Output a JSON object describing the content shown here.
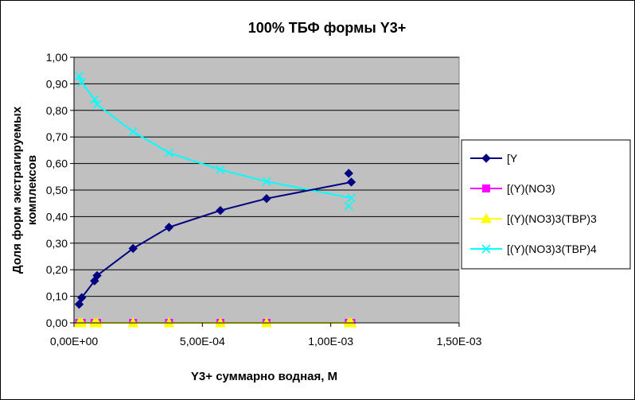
{
  "chart_data": {
    "type": "scatter",
    "title": "100%  ТБФ  формы Y3+",
    "xlabel": "Y3+ суммарно  водная, М",
    "ylabel_line1": "Доля форм экстрагируемых",
    "ylabel_line2": "комплексов",
    "xlim": [
      0,
      0.0015
    ],
    "ylim": [
      0,
      1.0
    ],
    "x_ticks": [
      0,
      0.0005,
      0.001,
      0.0015
    ],
    "x_tick_labels": [
      "0,00E+00",
      "5,00E-04",
      "1,00E-03",
      "1,50E-03"
    ],
    "y_ticks": [
      0,
      0.1,
      0.2,
      0.3,
      0.4,
      0.5,
      0.6,
      0.7,
      0.8,
      0.9,
      1.0
    ],
    "y_tick_labels": [
      "0,00",
      "0,10",
      "0,20",
      "0,30",
      "0,40",
      "0,50",
      "0,60",
      "0,70",
      "0,80",
      "0,90",
      "1,00"
    ],
    "grid": "horizontal",
    "plot_background": "#c0c0c0",
    "legend_position": "right",
    "series": [
      {
        "name": "[Y",
        "color": "#000080",
        "marker": "diamond",
        "line_points": [
          {
            "x": 2e-05,
            "y": 0.07
          },
          {
            "x": 3e-05,
            "y": 0.095
          },
          {
            "x": 8e-05,
            "y": 0.158
          },
          {
            "x": 9e-05,
            "y": 0.178
          },
          {
            "x": 0.00023,
            "y": 0.28
          },
          {
            "x": 0.00037,
            "y": 0.36
          },
          {
            "x": 0.00057,
            "y": 0.423
          },
          {
            "x": 0.00075,
            "y": 0.468
          },
          {
            "x": 0.00108,
            "y": 0.53
          }
        ],
        "points": [
          {
            "x": 2e-05,
            "y": 0.07
          },
          {
            "x": 3e-05,
            "y": 0.095
          },
          {
            "x": 8e-05,
            "y": 0.158
          },
          {
            "x": 9e-05,
            "y": 0.178
          },
          {
            "x": 0.00023,
            "y": 0.28
          },
          {
            "x": 0.00037,
            "y": 0.36
          },
          {
            "x": 0.00057,
            "y": 0.423
          },
          {
            "x": 0.00075,
            "y": 0.468
          },
          {
            "x": 0.00107,
            "y": 0.563
          },
          {
            "x": 0.00108,
            "y": 0.53
          }
        ]
      },
      {
        "name": "[(Y)(NO3)",
        "color": "#ff00ff",
        "marker": "square",
        "line_points": [
          {
            "x": 2e-05,
            "y": 0
          },
          {
            "x": 0.00108,
            "y": 0
          }
        ],
        "points": [
          {
            "x": 2e-05,
            "y": 0
          },
          {
            "x": 3e-05,
            "y": 0
          },
          {
            "x": 8e-05,
            "y": 0
          },
          {
            "x": 9e-05,
            "y": 0
          },
          {
            "x": 0.00023,
            "y": 0
          },
          {
            "x": 0.00037,
            "y": 0
          },
          {
            "x": 0.00057,
            "y": 0
          },
          {
            "x": 0.00075,
            "y": 0
          },
          {
            "x": 0.00107,
            "y": 0
          },
          {
            "x": 0.00108,
            "y": 0
          }
        ]
      },
      {
        "name": "[(Y)(NO3)3(TBP)3",
        "color": "#ffff00",
        "marker": "triangle",
        "line_points": [
          {
            "x": 2e-05,
            "y": 0
          },
          {
            "x": 0.00108,
            "y": 0
          }
        ],
        "points": [
          {
            "x": 2e-05,
            "y": 0
          },
          {
            "x": 3e-05,
            "y": 0
          },
          {
            "x": 8e-05,
            "y": 0
          },
          {
            "x": 9e-05,
            "y": 0
          },
          {
            "x": 0.00023,
            "y": 0
          },
          {
            "x": 0.00037,
            "y": 0
          },
          {
            "x": 0.00057,
            "y": 0
          },
          {
            "x": 0.00075,
            "y": 0
          },
          {
            "x": 0.00107,
            "y": 0
          },
          {
            "x": 0.00108,
            "y": 0
          }
        ]
      },
      {
        "name": "[(Y)(NO3)3(TBP)4",
        "color": "#00ffff",
        "marker": "x",
        "line_points": [
          {
            "x": 2e-05,
            "y": 0.93
          },
          {
            "x": 3e-05,
            "y": 0.905
          },
          {
            "x": 8e-05,
            "y": 0.842
          },
          {
            "x": 9e-05,
            "y": 0.822
          },
          {
            "x": 0.00023,
            "y": 0.72
          },
          {
            "x": 0.00037,
            "y": 0.64
          },
          {
            "x": 0.00057,
            "y": 0.577
          },
          {
            "x": 0.00075,
            "y": 0.532
          },
          {
            "x": 0.00108,
            "y": 0.47
          }
        ],
        "points": [
          {
            "x": 2e-05,
            "y": 0.93
          },
          {
            "x": 3e-05,
            "y": 0.905
          },
          {
            "x": 8e-05,
            "y": 0.842
          },
          {
            "x": 9e-05,
            "y": 0.822
          },
          {
            "x": 0.00023,
            "y": 0.72
          },
          {
            "x": 0.00037,
            "y": 0.64
          },
          {
            "x": 0.00057,
            "y": 0.577
          },
          {
            "x": 0.00075,
            "y": 0.532
          },
          {
            "x": 0.00107,
            "y": 0.44
          },
          {
            "x": 0.00108,
            "y": 0.47
          }
        ]
      }
    ]
  }
}
